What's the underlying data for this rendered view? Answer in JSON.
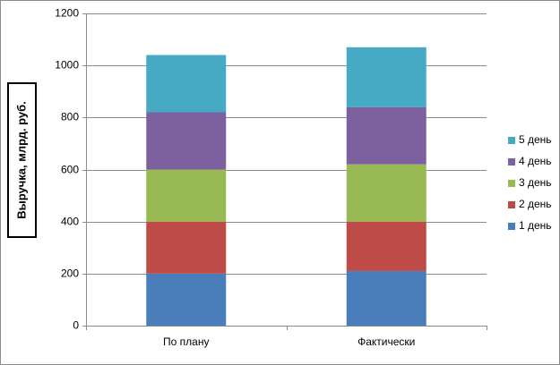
{
  "chart_data": {
    "type": "bar",
    "stacked": true,
    "categories": [
      "По плану",
      "Фактически"
    ],
    "series": [
      {
        "name": "1 день",
        "color": "#4a7ebb",
        "values": [
          200,
          210
        ]
      },
      {
        "name": "2 день",
        "color": "#be4b48",
        "values": [
          200,
          190
        ]
      },
      {
        "name": "3 день",
        "color": "#98b954",
        "values": [
          200,
          220
        ]
      },
      {
        "name": "4 день",
        "color": "#7d60a0",
        "values": [
          220,
          220
        ]
      },
      {
        "name": "5 день",
        "color": "#46aac5",
        "values": [
          220,
          230
        ]
      }
    ],
    "ylabel": "Выручка, млрд. руб.",
    "xlabel": "",
    "title": "",
    "ylim": [
      0,
      1200
    ],
    "yticks": [
      "0",
      "200",
      "400",
      "600",
      "800",
      "1000",
      "1200"
    ],
    "grid": true,
    "legend_position": "right"
  }
}
